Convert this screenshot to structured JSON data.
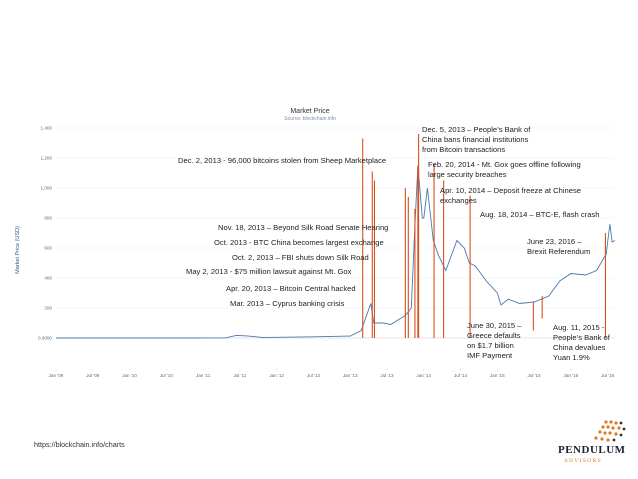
{
  "chart_data": {
    "type": "line",
    "title": "Market Price",
    "subtitle": "Source: blockchain.info",
    "ylabel": "Market Price (USD)",
    "xlabel": "",
    "ylim": [
      0,
      1400
    ],
    "y_tick_labels": [
      "0.0000",
      "200",
      "400",
      "600",
      "800",
      "1,000",
      "1,200",
      "1,400"
    ],
    "x_tick_labels": [
      "Jan '09",
      "Jul '09",
      "Jan '10",
      "Jul '10",
      "Jan '11",
      "Jul '11",
      "Jan '12",
      "Jul '12",
      "Jan '13",
      "Jul '13",
      "Jan '14",
      "Jul '14",
      "Jan '15",
      "Jul '15",
      "Jan '16",
      "Jul '16"
    ],
    "grid": true,
    "legend": "none",
    "line_color": "#4a79b0",
    "marker_color": "#d9501c",
    "series": [
      {
        "x": [
          2009.0,
          2010.0,
          2010.5,
          2010.9,
          2011.0,
          2011.3,
          2011.45,
          2011.6,
          2011.8,
          2012.0,
          2012.5,
          2012.9,
          2013.0,
          2013.15,
          2013.28,
          2013.32,
          2013.45,
          2013.55,
          2013.75,
          2013.83,
          2013.88,
          2013.92,
          2013.98,
          2014.0,
          2014.05,
          2014.13,
          2014.2,
          2014.3,
          2014.45,
          2014.55,
          2014.62,
          2014.7,
          2014.85,
          2015.0,
          2015.05,
          2015.15,
          2015.3,
          2015.5,
          2015.7,
          2015.85,
          2016.0,
          2016.2,
          2016.35,
          2016.48,
          2016.53,
          2016.56,
          2016.6
        ],
        "y": [
          0,
          0,
          0.07,
          0.3,
          0.5,
          1,
          17,
          14,
          4,
          5,
          8,
          12,
          13,
          50,
          230,
          100,
          100,
          90,
          150,
          200,
          750,
          1150,
          800,
          800,
          1000,
          650,
          550,
          450,
          650,
          600,
          500,
          480,
          380,
          300,
          220,
          260,
          230,
          240,
          280,
          380,
          430,
          420,
          450,
          560,
          760,
          640,
          650
        ]
      }
    ],
    "events": [
      {
        "date": 2013.17,
        "label": "Mar. 2013 – Cyprus banking crisis"
      },
      {
        "date": 2013.3,
        "label": "Apr. 20, 2013 – Bitcoin Central hacked"
      },
      {
        "date": 2013.33,
        "label": "May 2, 2013 - $75 million lawsuit against Mt. Gox"
      },
      {
        "date": 2013.75,
        "label": "Oct. 2, 2013 – FBI shuts down Silk Road"
      },
      {
        "date": 2013.79,
        "label": "Oct. 2013 - BTC China becomes largest exchange"
      },
      {
        "date": 2013.88,
        "label": "Nov. 18, 2013 – Beyond Silk Road Senate Hearing"
      },
      {
        "date": 2013.92,
        "label": "Dec. 2, 2013 - 96,000 bitcoins stolen from Sheep Marketplace"
      },
      {
        "date": 2013.93,
        "label": "Dec. 5, 2013 – People’s Bank of China bans financial institutions from Bitcoin transactions"
      },
      {
        "date": 2014.14,
        "label": "Feb. 20, 2014 - Mt. Gox goes offline following large security breaches"
      },
      {
        "date": 2014.27,
        "label": "Apr. 10, 2014 – Deposit freeze at Chinese exchanges"
      },
      {
        "date": 2014.63,
        "label": "Aug. 18, 2014 – BTC-E, flash crash"
      },
      {
        "date": 2015.49,
        "label": "June 30, 2015 – Greece defaults on $1.7 billion IMF Payment"
      },
      {
        "date": 2015.61,
        "label": "Aug. 11, 2015 - People’s Bank of China devalues Yuan 1.9%"
      },
      {
        "date": 2016.47,
        "label": "June 23, 2016 – Brexit Referendum"
      }
    ]
  },
  "annotations": {
    "cyprus": "Mar. 2013 – Cyprus banking crisis",
    "central": "Apr. 20, 2013 – Bitcoin Central hacked",
    "lawsuit": "May 2, 2013 - $75 million lawsuit against Mt. Gox",
    "silkroad": "Oct. 2, 2013 – FBI shuts down Silk Road",
    "btcchina": "Oct. 2013 - BTC China becomes largest exchange",
    "senate": "Nov. 18, 2013 – Beyond Silk Road Senate Hearing",
    "sheep": "Dec. 2, 2013 - 96,000 bitcoins stolen from Sheep Marketplace",
    "pboc_l1": "Dec. 5, 2013 – People’s Bank of",
    "pboc_l2": "China bans financial institutions",
    "pboc_l3": "from Bitcoin transactions",
    "mtgox_l1": "Feb. 20, 2014 - Mt. Gox goes offline following",
    "mtgox_l2": "large security breaches",
    "freeze_l1": "Apr. 10, 2014 – Deposit freeze at Chinese",
    "freeze_l2": "exchanges",
    "btce": "Aug. 18, 2014 – BTC-E, flash crash",
    "brexit_l1": "June 23, 2016 –",
    "brexit_l2": "Brexit Referendum",
    "greece_l1": "June 30, 2015 –",
    "greece_l2": "Greece defaults",
    "greece_l3": "on $1.7 billion",
    "greece_l4": "IMF Payment",
    "yuan_l1": "Aug. 11, 2015 -",
    "yuan_l2": "People’s Bank of",
    "yuan_l3": "China devalues",
    "yuan_l4": "Yuan 1.9%"
  },
  "footer": {
    "source_link": "https://blockchain.info/charts",
    "logo_name": "PENDULUM",
    "logo_sub": "A D V I S O R S"
  }
}
